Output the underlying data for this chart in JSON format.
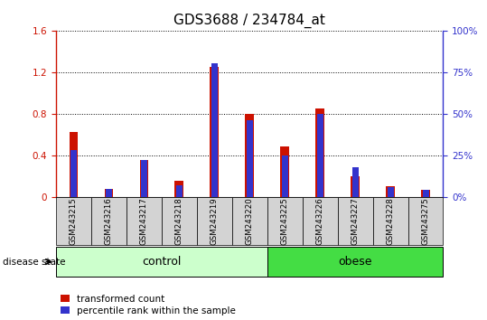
{
  "title": "GDS3688 / 234784_at",
  "samples": [
    "GSM243215",
    "GSM243216",
    "GSM243217",
    "GSM243218",
    "GSM243219",
    "GSM243220",
    "GSM243225",
    "GSM243226",
    "GSM243227",
    "GSM243228",
    "GSM243275"
  ],
  "transformed_count": [
    0.62,
    0.08,
    0.35,
    0.15,
    1.25,
    0.8,
    0.48,
    0.85,
    0.2,
    0.1,
    0.07
  ],
  "percentile_rank_pct": [
    28,
    5,
    22,
    7,
    80,
    46,
    25,
    50,
    18,
    6,
    4
  ],
  "red_color": "#cc1100",
  "blue_color": "#3333cc",
  "ylim_left": [
    0,
    1.6
  ],
  "ylim_right": [
    0,
    100
  ],
  "yticks_left": [
    0,
    0.4,
    0.8,
    1.2,
    1.6
  ],
  "yticks_right": [
    0,
    25,
    50,
    75,
    100
  ],
  "control_samples": 6,
  "obese_samples": 5,
  "control_label": "control",
  "obese_label": "obese",
  "disease_state_label": "disease state",
  "legend_red": "transformed count",
  "legend_blue": "percentile rank within the sample",
  "bar_width": 0.25,
  "blue_bar_width": 0.18,
  "control_bg": "#ccffcc",
  "obese_bg": "#44dd44",
  "sample_bg": "#d3d3d3",
  "title_fontsize": 11,
  "tick_label_fontsize": 7.5,
  "label_fontsize": 8.5
}
